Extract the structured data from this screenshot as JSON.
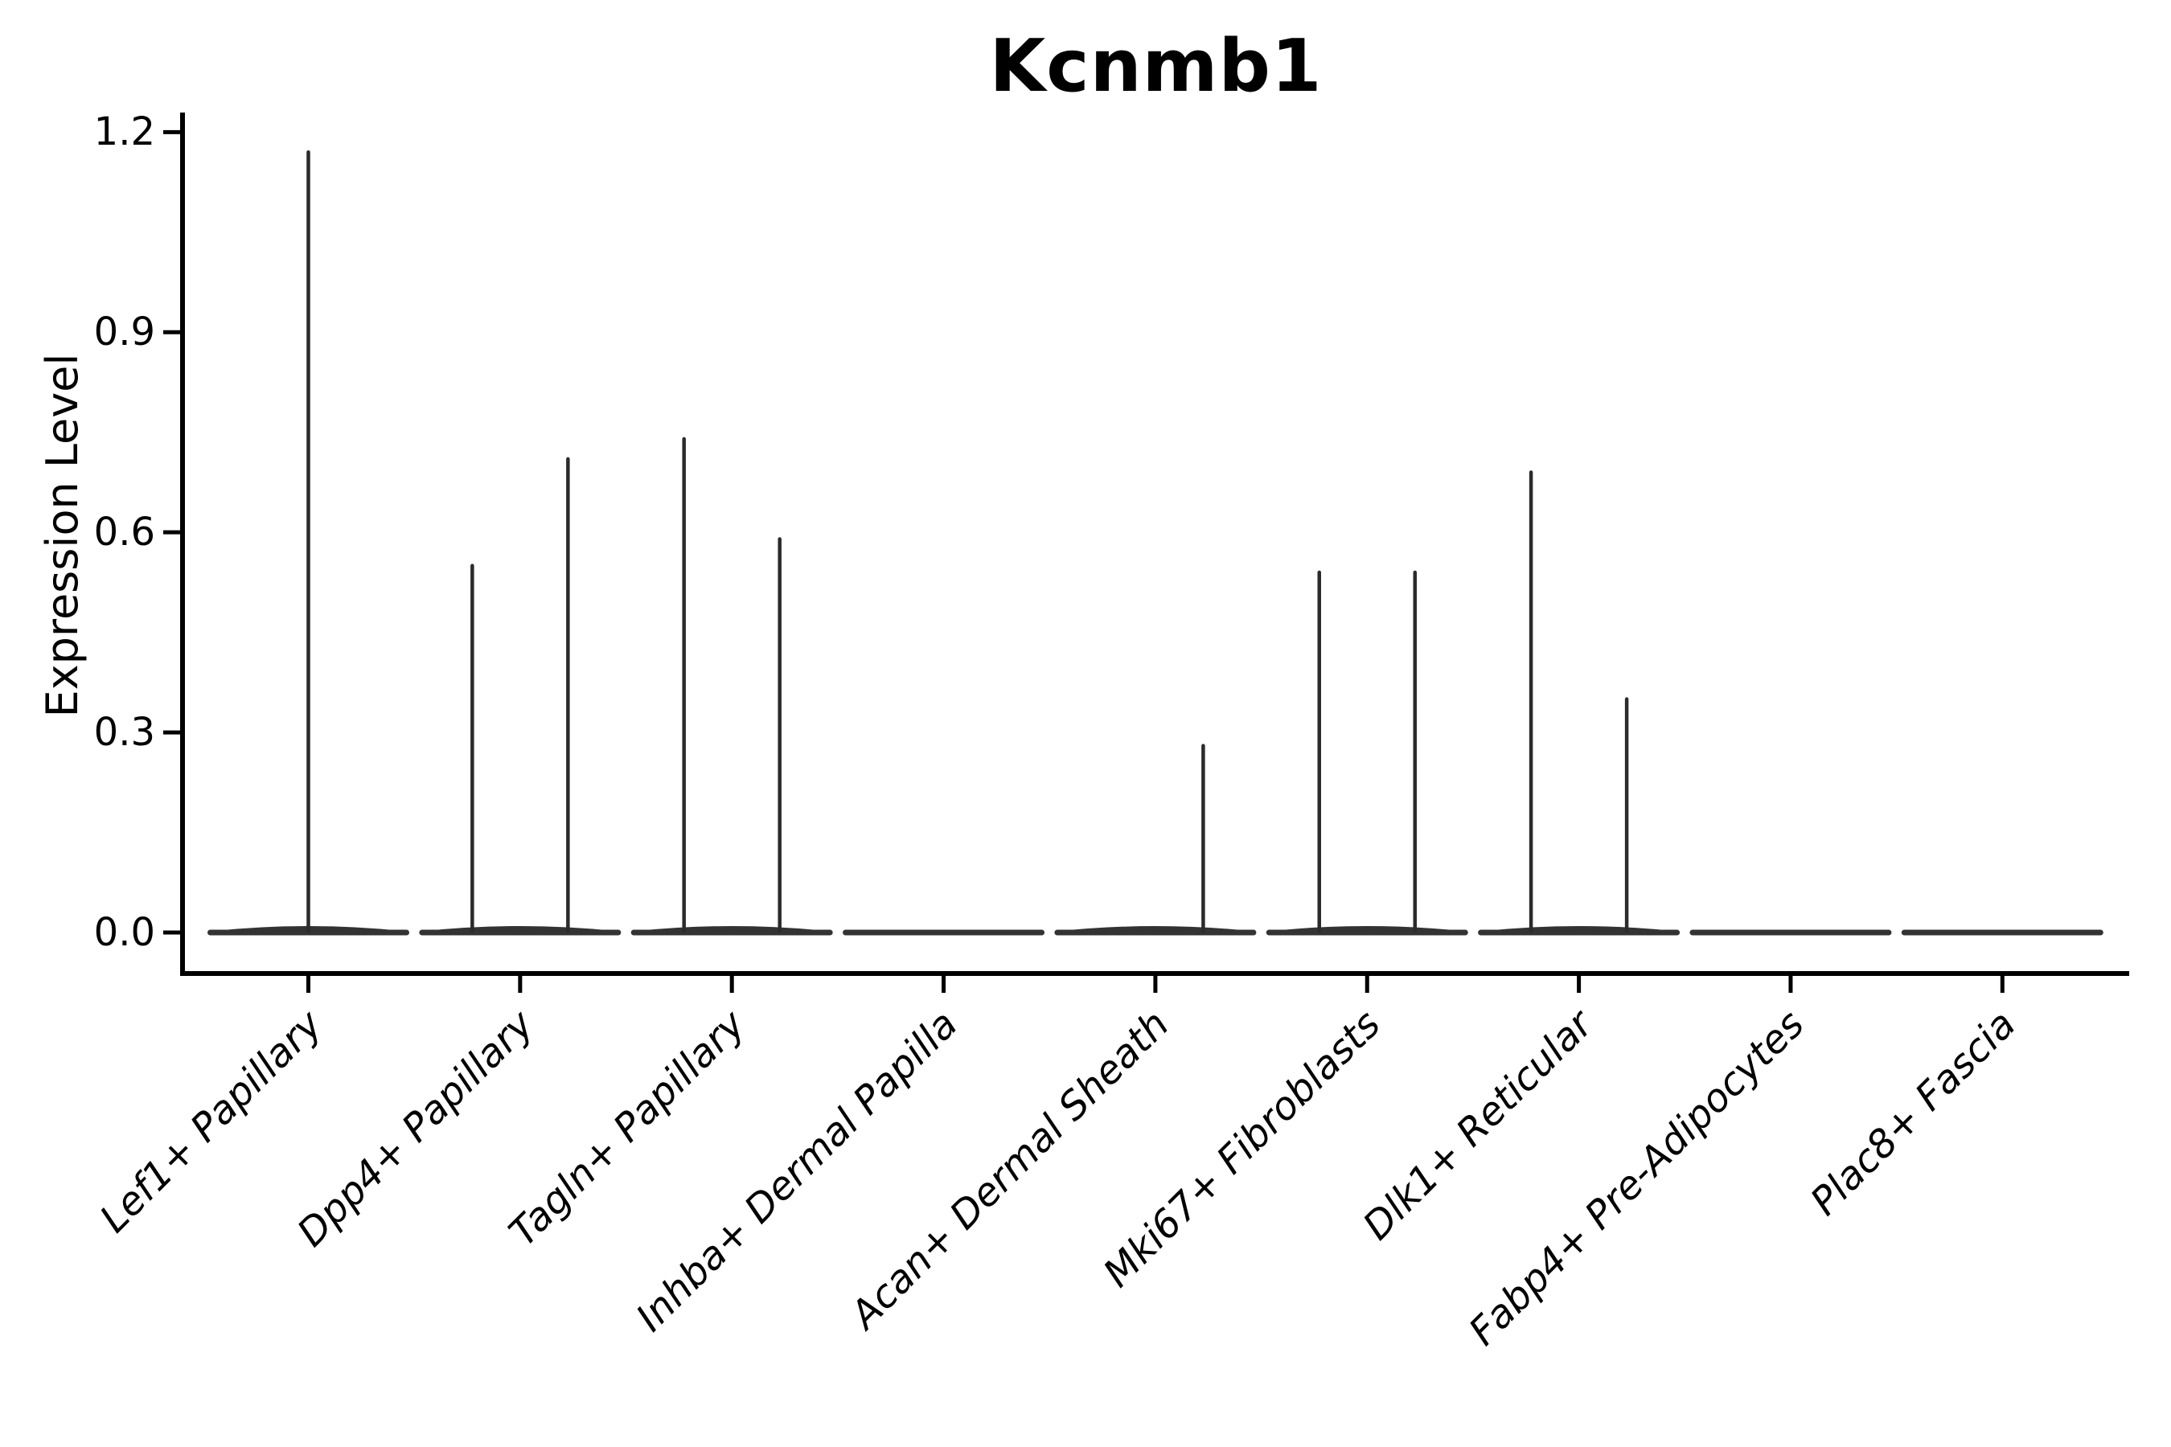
{
  "chart_data": {
    "type": "violin",
    "title": "Kcnmb1",
    "xlabel": "",
    "ylabel": "Expression Level",
    "ylim": [
      0,
      1.2
    ],
    "yticks": [
      0.0,
      0.3,
      0.6,
      0.9,
      1.2
    ],
    "ytick_labels": [
      "0.0",
      "0.3",
      "0.6",
      "0.9",
      "1.2"
    ],
    "categories": [
      "Lef1+ Papillary",
      "Dpp4+ Papillary",
      "Tagln+ Papillary",
      "Inhba+ Dermal Papilla",
      "Acan+ Dermal Sheath",
      "Mki67+ Fibroblasts",
      "Dlk1+ Reticular",
      "Fabp4+ Pre-Adipocytes",
      "Plac8+ Fascia"
    ],
    "distribution_note": "All violins have nearly all density at expression 0 (flat horizontal blade at baseline); thin vertical spikes mark the sparse expressing-cell tails up to the listed maxima.",
    "violins": [
      {
        "category": "Lef1+ Papillary",
        "spikes": [
          {
            "pos": "center",
            "max": 1.17
          }
        ]
      },
      {
        "category": "Dpp4+ Papillary",
        "spikes": [
          {
            "pos": "left",
            "max": 0.55
          },
          {
            "pos": "right",
            "max": 0.71
          }
        ]
      },
      {
        "category": "Tagln+ Papillary",
        "spikes": [
          {
            "pos": "left",
            "max": 0.74
          },
          {
            "pos": "right",
            "max": 0.59
          }
        ]
      },
      {
        "category": "Inhba+ Dermal Papilla",
        "spikes": []
      },
      {
        "category": "Acan+ Dermal Sheath",
        "spikes": [
          {
            "pos": "right",
            "max": 0.28
          }
        ]
      },
      {
        "category": "Mki67+ Fibroblasts",
        "spikes": [
          {
            "pos": "left",
            "max": 0.54
          },
          {
            "pos": "right",
            "max": 0.54
          }
        ]
      },
      {
        "category": "Dlk1+ Reticular",
        "spikes": [
          {
            "pos": "left",
            "max": 0.69
          },
          {
            "pos": "right",
            "max": 0.35
          }
        ]
      },
      {
        "category": "Fabp4+ Pre-Adipocytes",
        "spikes": []
      },
      {
        "category": "Plac8+ Fascia",
        "spikes": []
      }
    ],
    "colors": {
      "axis": "#000000",
      "violin": "#333333",
      "spike": "#2b2b2b",
      "text": "#000000",
      "background": "#ffffff"
    },
    "legend": "none",
    "grid": "off"
  }
}
